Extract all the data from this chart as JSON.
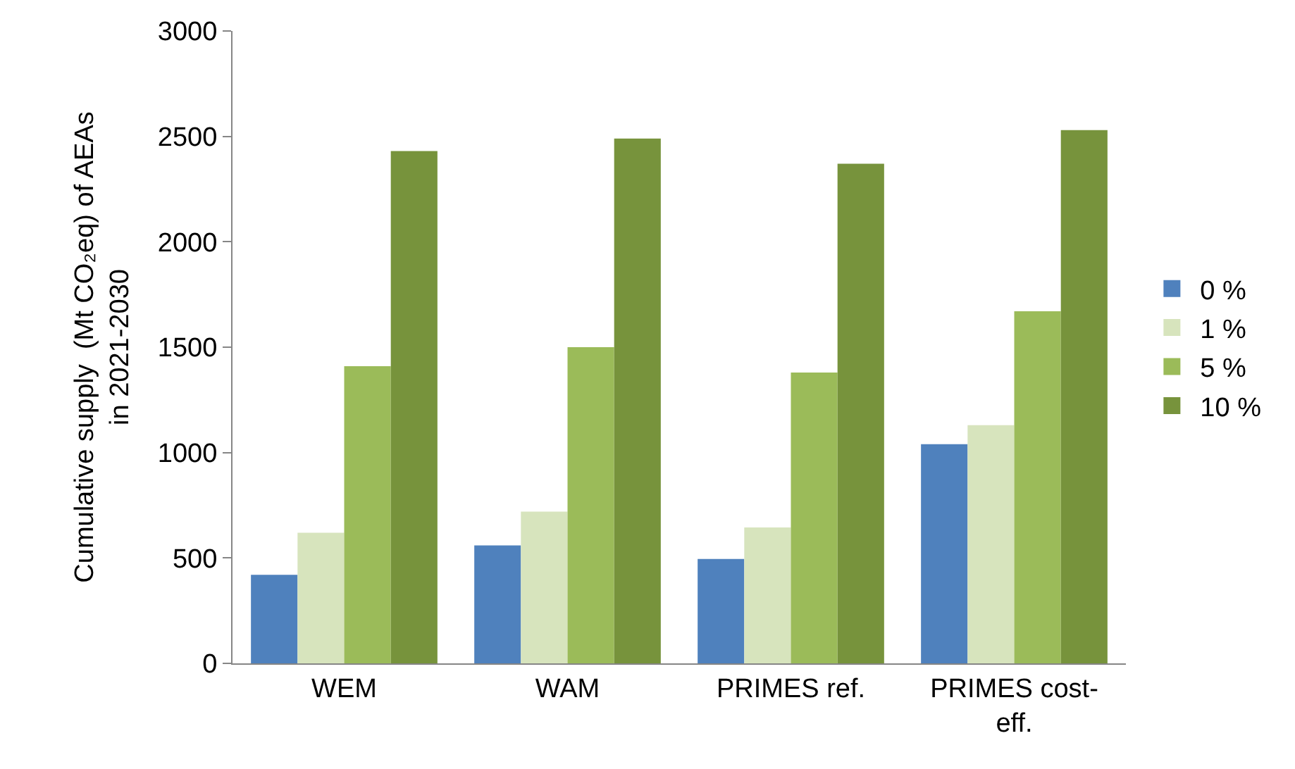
{
  "chart_data": {
    "type": "bar",
    "ylabel": "Cumulative supply  (Mt CO₂eq) of AEAs\nin 2021-2030",
    "categories": [
      "WEM",
      "WAM",
      "PRIMES ref.",
      "PRIMES cost-\neff."
    ],
    "series": [
      {
        "name": "0 %",
        "color": "#4f81bd",
        "values": [
          420,
          560,
          495,
          1040
        ]
      },
      {
        "name": "1 %",
        "color": "#d7e4bd",
        "values": [
          620,
          720,
          645,
          1130
        ]
      },
      {
        "name": "5 %",
        "color": "#9bbb59",
        "values": [
          1410,
          1500,
          1380,
          1670
        ]
      },
      {
        "name": "10 %",
        "color": "#77933c",
        "values": [
          2430,
          2490,
          2370,
          2530
        ]
      }
    ],
    "ylim": [
      0,
      3000
    ],
    "yticks": [
      0,
      500,
      1000,
      1500,
      2000,
      2500,
      3000
    ],
    "grid": false,
    "legend": "right"
  }
}
